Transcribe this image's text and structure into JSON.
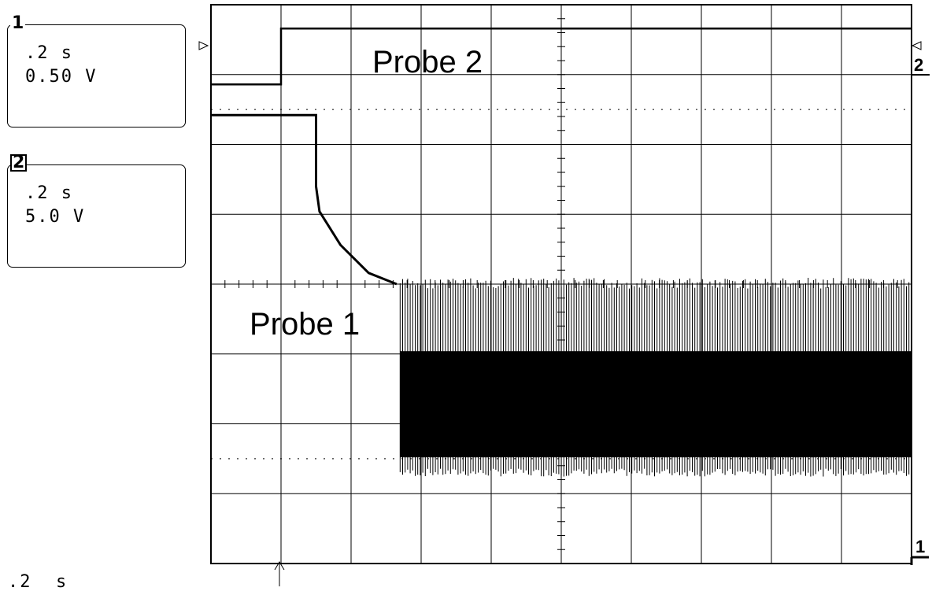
{
  "channel1": {
    "number": "1",
    "timebase": ".2 s",
    "volts": "0.50 V"
  },
  "channel2": {
    "number": "2",
    "timebase": ".2 s",
    "volts": "5.0 V"
  },
  "timebase_readout": ".2  s",
  "markers": {
    "ch2_right": "2",
    "ch1_right": "1"
  },
  "colors": {
    "trace": "#000000",
    "grid": "#000000",
    "background": "#ffffff"
  },
  "chart_data": {
    "type": "line",
    "title": "",
    "xlabel": "",
    "ylabel": "",
    "grid": true,
    "grid_divisions": {
      "x": 10,
      "y": 8
    },
    "xlim": [
      0,
      2.0
    ],
    "x_unit": "s",
    "series": [
      {
        "name": "Probe 2",
        "channel": 2,
        "volts_per_div": 5.0,
        "points": [
          [
            0,
            14.3
          ],
          [
            0.2,
            14.3
          ],
          [
            0.2,
            18.3
          ],
          [
            2.0,
            18.3
          ]
        ]
      },
      {
        "name": "Probe 1",
        "channel": 1,
        "volts_per_div": 0.5,
        "points": [
          [
            0,
            1.21
          ],
          [
            0.3,
            1.21
          ],
          [
            0.3,
            0.7
          ],
          [
            0.31,
            0.52
          ],
          [
            0.37,
            0.28
          ],
          [
            0.45,
            0.08
          ],
          [
            0.53,
            0.0
          ]
        ],
        "oscillation": {
          "x_start": 0.54,
          "x_end": 2.0,
          "high": 0.0,
          "low": -1.4,
          "band_high": -0.48,
          "band_low": -1.24
        }
      }
    ],
    "annotations": [
      "Probe 2",
      "Probe 1"
    ]
  }
}
